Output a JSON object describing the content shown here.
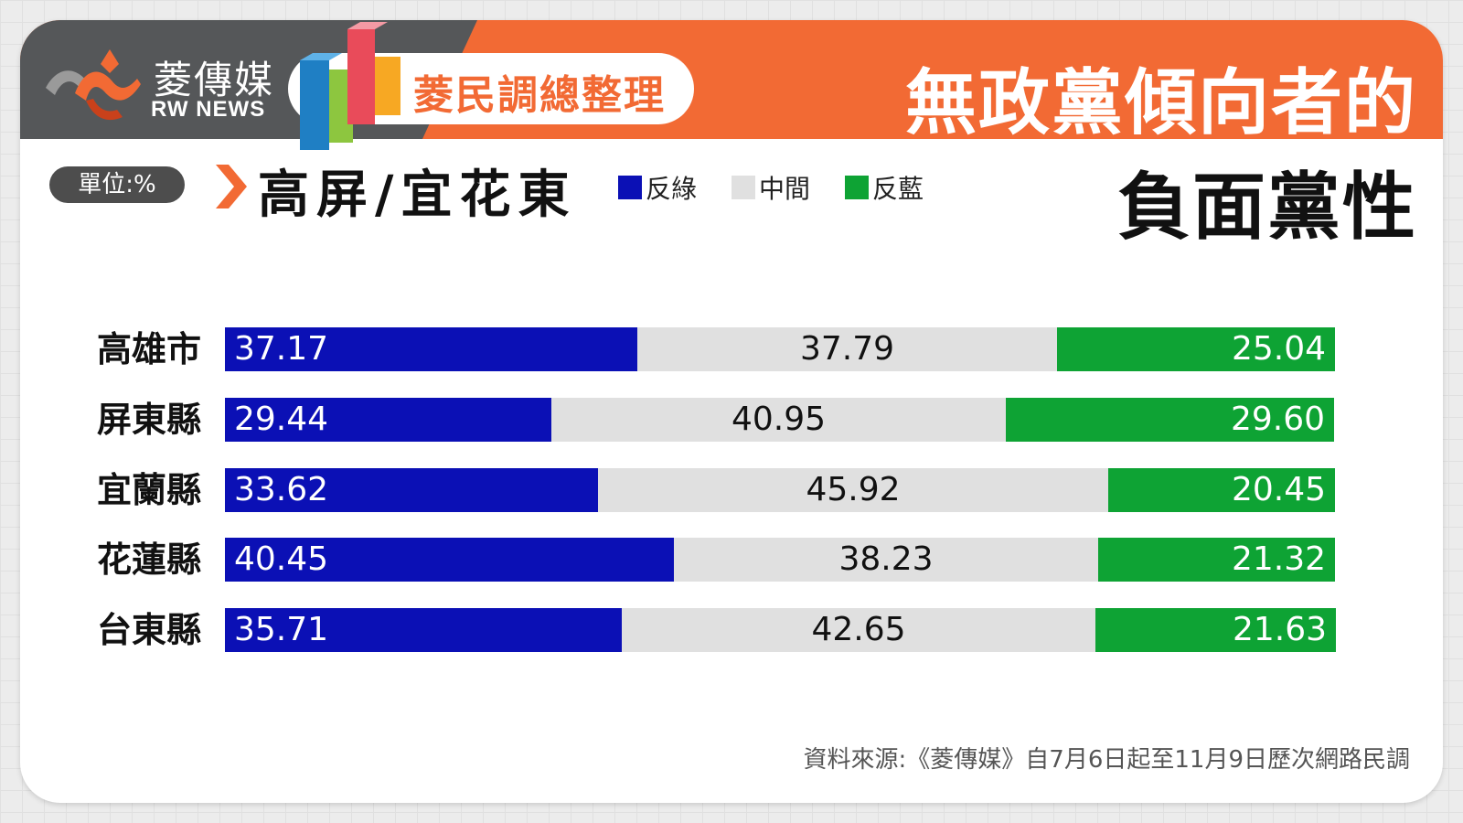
{
  "brand": {
    "name_cn": "菱傳媒",
    "name_en": "RW NEWS"
  },
  "header": {
    "pill_text": "菱民調總整理",
    "title_line1": "無政黨傾向者的",
    "title_line2": "負面黨性"
  },
  "unit_label": "單位:%",
  "subtitle": "高屏/宜花東",
  "source": "資料來源:《菱傳媒》自7月6日起至11月9日歷次網路民調",
  "colors": {
    "orange": "#f26a34",
    "dark_gray": "#555759",
    "anti_green": "#0b10b5",
    "middle": "#e0e0e0",
    "anti_blue": "#0ea334"
  },
  "chart_data": {
    "type": "bar",
    "stacked": true,
    "orientation": "horizontal",
    "unit": "%",
    "categories": [
      "高雄市",
      "屏東縣",
      "宜蘭縣",
      "花蓮縣",
      "台東縣"
    ],
    "series": [
      {
        "name": "反綠",
        "color": "#0b10b5",
        "values": [
          37.17,
          29.44,
          33.62,
          40.45,
          35.71
        ]
      },
      {
        "name": "中間",
        "color": "#e0e0e0",
        "values": [
          37.79,
          40.95,
          45.92,
          38.23,
          42.65
        ]
      },
      {
        "name": "反藍",
        "color": "#0ea334",
        "values": [
          25.04,
          29.6,
          20.45,
          21.32,
          21.63
        ]
      }
    ],
    "value_labels": [
      [
        "37.17",
        "37.79",
        "25.04"
      ],
      [
        "29.44",
        "40.95",
        "29.60"
      ],
      [
        "33.62",
        "45.92",
        "20.45"
      ],
      [
        "40.45",
        "38.23",
        "21.32"
      ],
      [
        "35.71",
        "42.65",
        "21.63"
      ]
    ],
    "legend_position": "top"
  }
}
